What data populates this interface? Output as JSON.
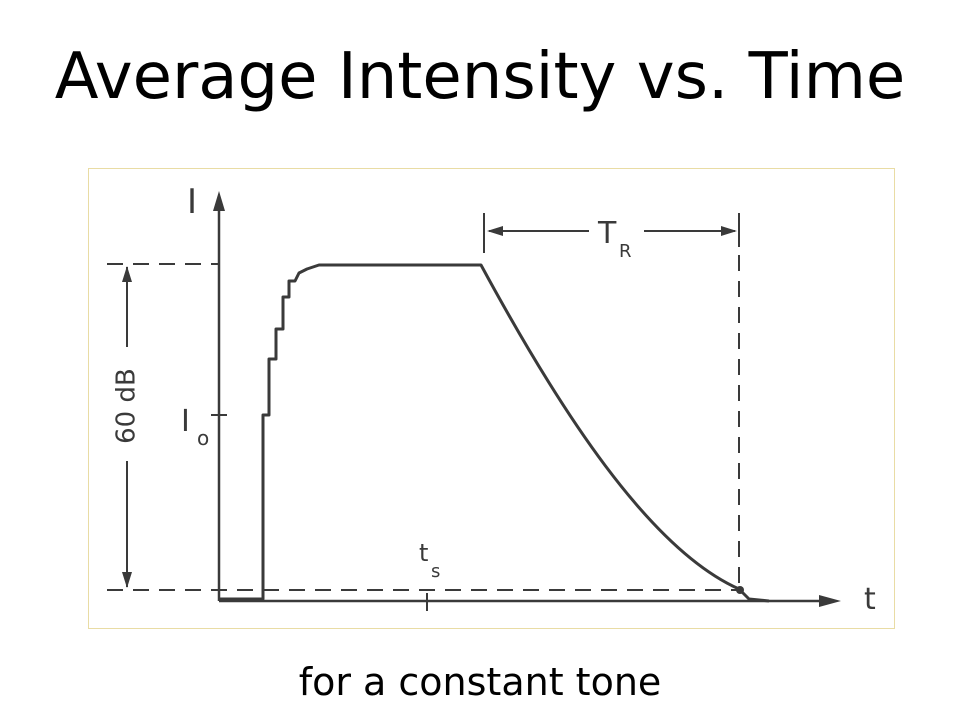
{
  "slide": {
    "title": "Average Intensity vs. Time",
    "subtitle": "for a constant tone"
  },
  "diagram": {
    "labels": {
      "y_axis": "I",
      "x_axis": "t",
      "steady_intensity": "I",
      "steady_intensity_sub": "o",
      "level_difference": "60 dB",
      "reverb_time": "T",
      "reverb_time_sub": "R",
      "start_time": "t",
      "start_time_sub": "s"
    },
    "colors": {
      "ink": "#3a3a3a",
      "frame_border": "#e9dca4"
    }
  }
}
